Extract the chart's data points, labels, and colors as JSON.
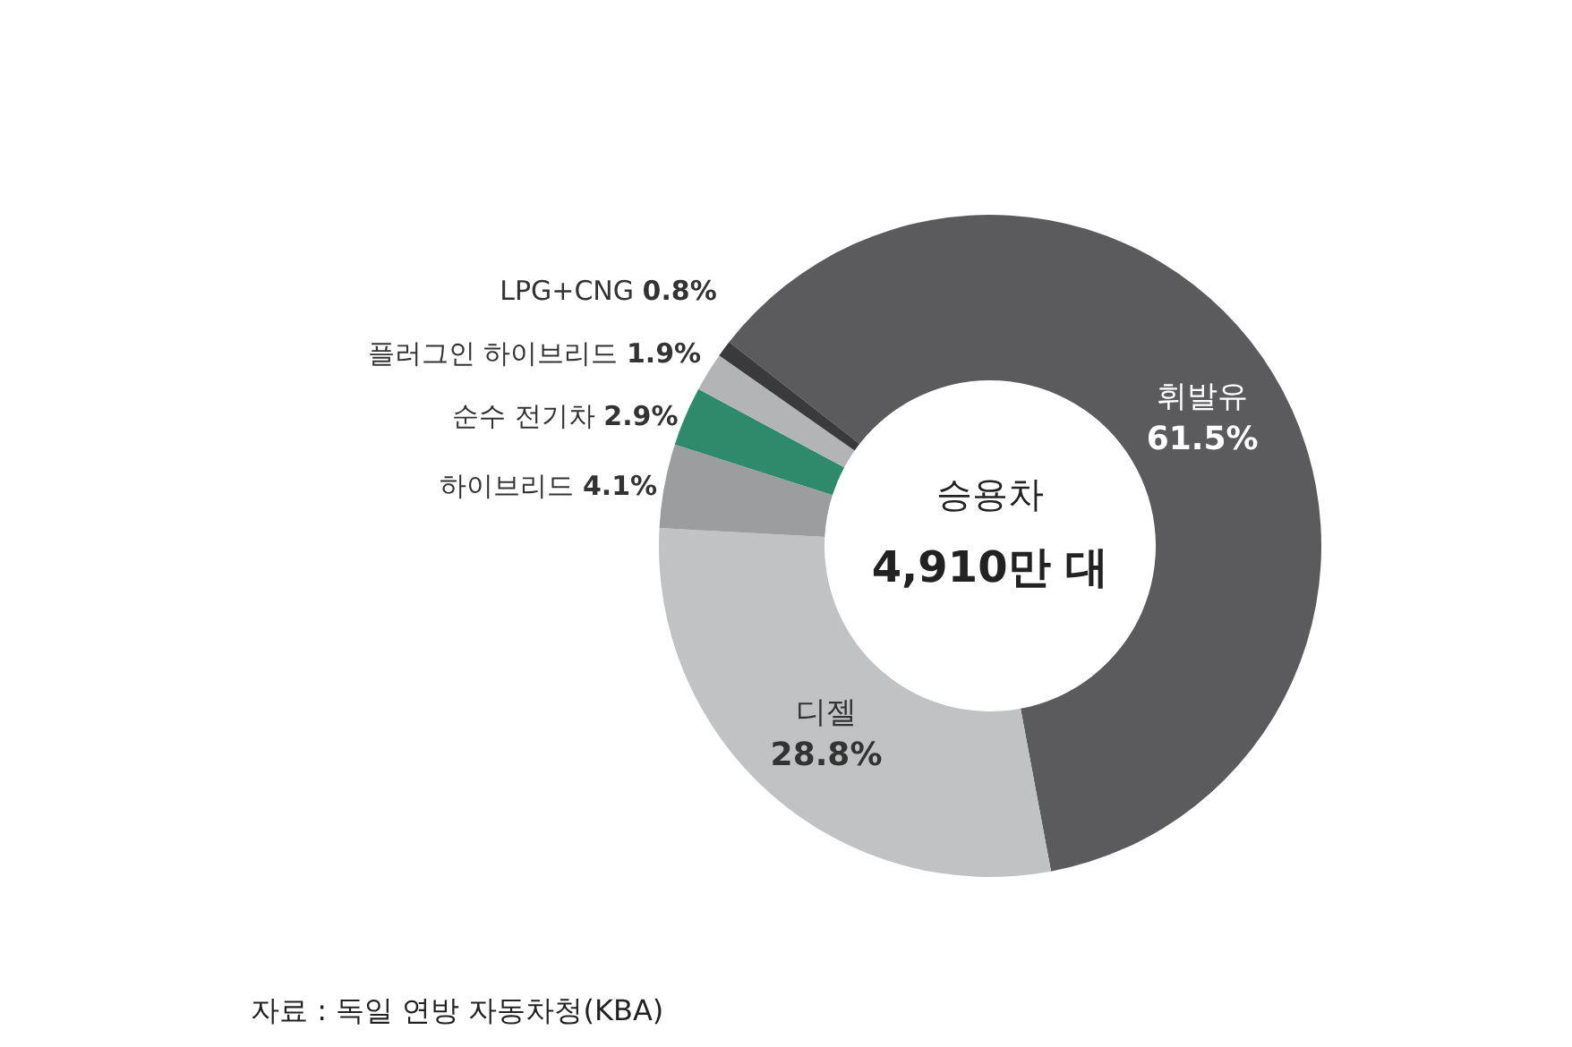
{
  "chart_data": {
    "type": "donut",
    "categories": [
      "휘발유",
      "디젤",
      "하이브리드",
      "순수 전기차",
      "플러그인 하이브리드",
      "LPG+CNG"
    ],
    "values": [
      61.5,
      28.8,
      4.1,
      2.9,
      1.9,
      0.8
    ],
    "colors": [
      "#5b5b5d",
      "#c1c2c4",
      "#9c9d9f",
      "#2f8a6b",
      "#b3b4b6",
      "#3a3a3c"
    ],
    "value_labels": [
      "61.5%",
      "28.8%",
      "4.1%",
      "2.9%",
      "1.9%",
      "0.8%"
    ],
    "annotations": [
      "승용차",
      "4,910만 대",
      "자료 : 독일 연방 자동차청(KBA)"
    ]
  }
}
